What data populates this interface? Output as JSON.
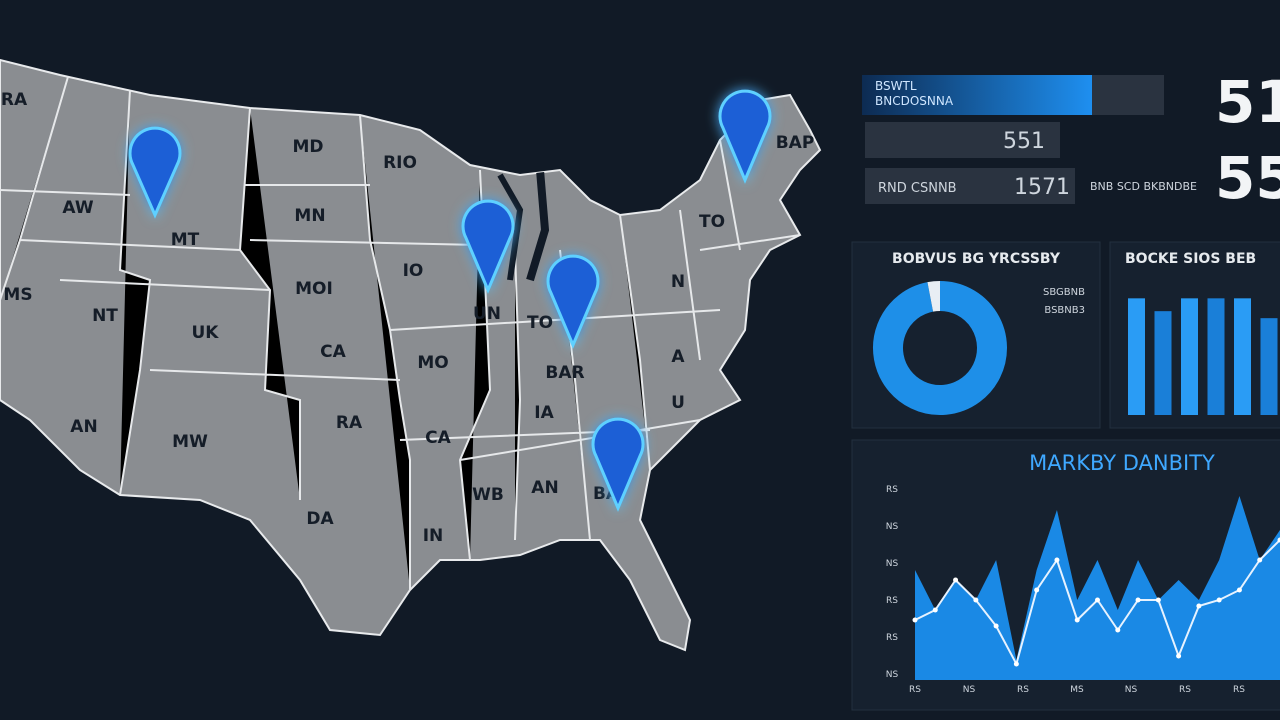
{
  "map": {
    "state_labels": [
      "RA",
      "AW",
      "MT",
      "MD",
      "MN",
      "RIO",
      "IO",
      "MOI",
      "MS",
      "NT",
      "UK",
      "CA",
      "MO",
      "UN",
      "TO",
      "BAR",
      "IA",
      "TO",
      "BAP",
      "N",
      "A",
      "U",
      "CA",
      "RA",
      "AN",
      "MW",
      "DA",
      "IN",
      "WB",
      "AN",
      "BA"
    ]
  },
  "kpi": {
    "bar_label_1": "BSWTL",
    "bar_label_2": "BNCDOSNNA",
    "row_2_value": "551",
    "row_3_label": "RND CSNNB",
    "row_3_value": "1571",
    "side_label": "BNB SCD BKBNDBE",
    "big_1": "51",
    "big_2": "55"
  },
  "donut_panel": {
    "title": "BOBVUS BG YRCSSBY",
    "legend_1": "SBGBNB",
    "legend_2": "BSBNB3",
    "values": [
      97,
      3
    ]
  },
  "bar_panel": {
    "title": "BOCKE SIOS BEB",
    "values": [
      100,
      89,
      100,
      100,
      100,
      83
    ],
    "ylim": [
      0,
      120
    ]
  },
  "area_panel": {
    "title": "MARKBY DANBITY",
    "ytick_labels": [
      "RS",
      "NS",
      "NS",
      "RS",
      "RS",
      "NS"
    ],
    "xtick_labels": [
      "RS",
      "NS",
      "RS",
      "MS",
      "NS",
      "RS",
      "RS"
    ],
    "ylim": [
      0,
      100
    ],
    "area": [
      55,
      35,
      50,
      40,
      60,
      10,
      55,
      85,
      40,
      60,
      35,
      60,
      40,
      50,
      40,
      60,
      92,
      60,
      75
    ],
    "line": [
      30,
      35,
      50,
      40,
      27,
      8,
      45,
      60,
      30,
      40,
      25,
      40,
      40,
      12,
      37,
      40,
      45,
      60,
      70
    ]
  }
}
